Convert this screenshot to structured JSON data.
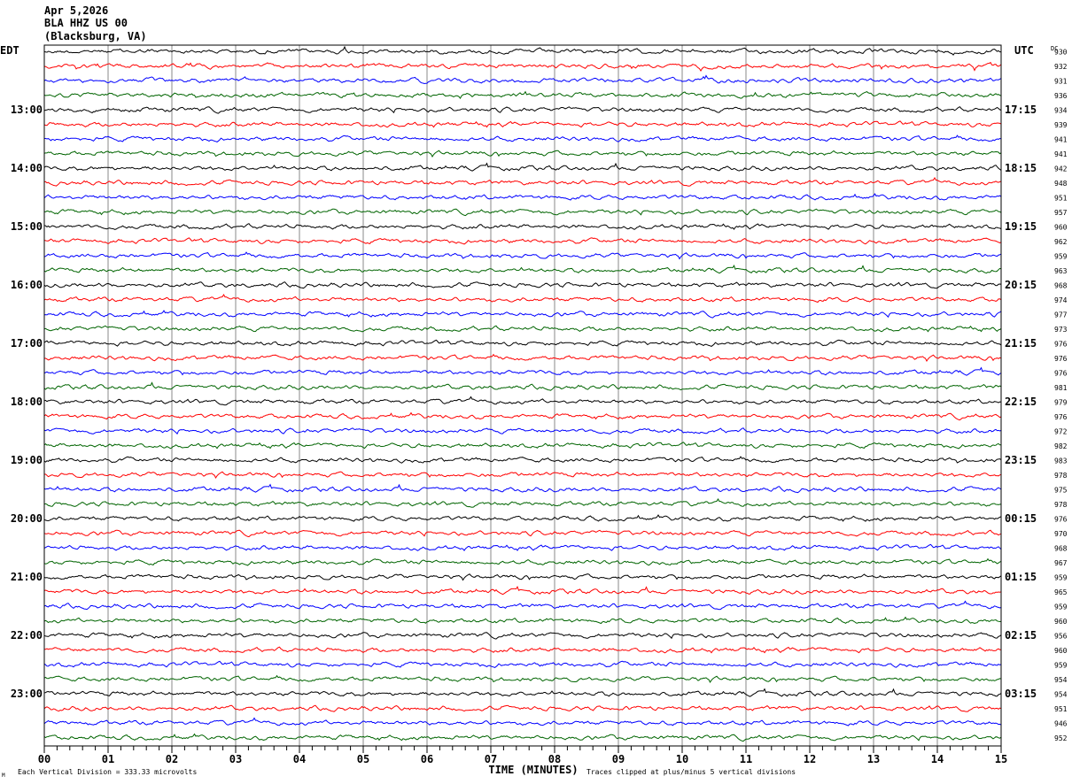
{
  "header": {
    "date": "Apr 5,2026",
    "station": "BLA HHZ US 00",
    "location": "(Blacksburg, VA)"
  },
  "chart_data": {
    "type": "line",
    "left_timezone": "EDT",
    "right_timezone": "UTC",
    "dc_label": "DC",
    "xlabel": "TIME (MINUTES)",
    "xlim": [
      0,
      15
    ],
    "x_ticks": [
      "00",
      "01",
      "02",
      "03",
      "04",
      "05",
      "06",
      "07",
      "08",
      "09",
      "10",
      "11",
      "12",
      "13",
      "14",
      "15"
    ],
    "rows_per_hour": 4,
    "left_hour_labels": [
      "13:00",
      "14:00",
      "15:00",
      "16:00",
      "17:00",
      "18:00",
      "19:00",
      "20:00",
      "21:00",
      "22:00",
      "23:00"
    ],
    "right_hour_labels": [
      "17:15",
      "18:15",
      "19:15",
      "20:15",
      "21:15",
      "22:15",
      "23:15",
      "00:15",
      "01:15",
      "02:15",
      "03:15"
    ],
    "dc_offsets": [
      930,
      932,
      931,
      936,
      934,
      939,
      941,
      941,
      942,
      948,
      951,
      957,
      960,
      962,
      959,
      963,
      968,
      974,
      977,
      973,
      976,
      976,
      976,
      981,
      979,
      976,
      972,
      982,
      983,
      978,
      975,
      978,
      976,
      970,
      968,
      967,
      959,
      965,
      959,
      960,
      956,
      960,
      959,
      954,
      954,
      951,
      946,
      952
    ],
    "trace_colors": [
      "#000000",
      "#ff0000",
      "#0000ff",
      "#006400"
    ],
    "grid": true,
    "footer_left": "Each Vertical Division =  333.33 microvolts",
    "footer_right": "Traces clipped at plus/minus 5 vertical divisions",
    "corner_mark": "M"
  }
}
